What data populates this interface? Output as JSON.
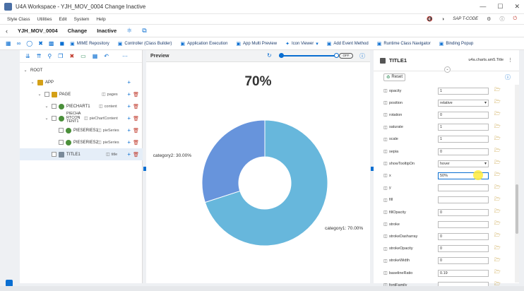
{
  "window": {
    "title": "U4A Workspace - YJH_MOV_0004 Change Inactive",
    "controls": [
      "—",
      "☐",
      "✕"
    ]
  },
  "menu": {
    "items": [
      "Style Class",
      "Utilities",
      "Edit",
      "System",
      "Help"
    ],
    "tcode": "SAP T-CODE"
  },
  "header": {
    "app_name": "YJH_MOV_0004",
    "mode": "Change",
    "status": "Inactive"
  },
  "toolbar": {
    "buttons": [
      {
        "label": "MIME Repository",
        "icon": "mime-icon"
      },
      {
        "label": "Controller (Class Builder)",
        "icon": "controller-icon"
      },
      {
        "label": "Application Execution",
        "icon": "execute-icon"
      },
      {
        "label": "App Multi Preview",
        "icon": "preview-icon"
      },
      {
        "label": "Icon Viewer",
        "icon": "icon-viewer-icon"
      },
      {
        "label": "Add Event Method",
        "icon": "add-icon"
      },
      {
        "label": "Runtime Class Navigator",
        "icon": "navigator-icon"
      },
      {
        "label": "Binding Popup",
        "icon": "binding-icon"
      }
    ]
  },
  "tree": {
    "nodes": [
      {
        "label": "ROOT",
        "agg": ""
      },
      {
        "label": "APP",
        "agg": ""
      },
      {
        "label": "PAGE",
        "agg": "pages"
      },
      {
        "label": "PIECHART1",
        "agg": "content"
      },
      {
        "label": "PIECHA\nRTCON\nTENT1",
        "agg": "pieChartContent"
      },
      {
        "label": "PIESERIES1",
        "agg": "pieSeries"
      },
      {
        "label": "PIESERIES2",
        "agg": "pieSeries"
      },
      {
        "label": "TITLE1",
        "agg": "title"
      }
    ]
  },
  "preview": {
    "title": "Preview",
    "toggle_label": "OFF"
  },
  "chart_data": {
    "type": "pie",
    "title": "70%",
    "donut": true,
    "categories": [
      "category1",
      "category2"
    ],
    "values": [
      70,
      30
    ],
    "labels": [
      "category1: 70.00%",
      "category2: 30.00%"
    ],
    "colors": [
      "#67b7dc",
      "#6794dc"
    ]
  },
  "properties": {
    "element": "TITLE1",
    "class_name": "u4a.charts.am5.Title",
    "reset_label": "Reset",
    "rows": [
      {
        "name": "opacity",
        "value": "1",
        "type": "input"
      },
      {
        "name": "position",
        "value": "relative",
        "type": "select"
      },
      {
        "name": "rotation",
        "value": "0",
        "type": "input"
      },
      {
        "name": "saturate",
        "value": "1",
        "type": "input"
      },
      {
        "name": "scale",
        "value": "1",
        "type": "input"
      },
      {
        "name": "sepia",
        "value": "0",
        "type": "input"
      },
      {
        "name": "showTooltipOn",
        "value": "hover",
        "type": "select"
      },
      {
        "name": "x",
        "value": "50%",
        "type": "input",
        "active": true
      },
      {
        "name": "y",
        "value": "",
        "type": "input"
      },
      {
        "name": "fill",
        "value": "",
        "type": "input"
      },
      {
        "name": "fillOpacity",
        "value": "0",
        "type": "input"
      },
      {
        "name": "stroke",
        "value": "",
        "type": "input"
      },
      {
        "name": "strokeDasharray",
        "value": "0",
        "type": "input"
      },
      {
        "name": "strokeOpacity",
        "value": "0",
        "type": "input"
      },
      {
        "name": "strokeWidth",
        "value": "0",
        "type": "input"
      },
      {
        "name": "baselineRatio",
        "value": "0.19",
        "type": "input"
      },
      {
        "name": "fontFamily",
        "value": "",
        "type": "input"
      }
    ]
  }
}
